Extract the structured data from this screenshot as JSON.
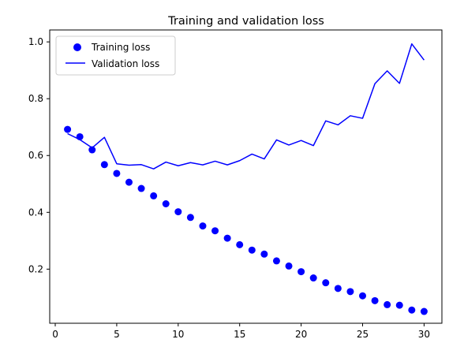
{
  "chart_data": {
    "type": "line",
    "title": "Training and validation loss",
    "xlabel": "",
    "ylabel": "",
    "xlim": [
      -0.45,
      31.45
    ],
    "ylim": [
      0.0095,
      1.042
    ],
    "xticks": [
      0,
      5,
      10,
      15,
      20,
      25,
      30
    ],
    "yticks": [
      0.2,
      0.4,
      0.6,
      0.8,
      1.0
    ],
    "ytick_labels": [
      "0.2",
      "0.4",
      "0.6",
      "0.8",
      "1.0"
    ],
    "grid": false,
    "legend_position": "top-left",
    "series": [
      {
        "name": "Training loss",
        "style": "markers",
        "color": "#0000ff",
        "x": [
          1,
          2,
          3,
          4,
          5,
          6,
          7,
          8,
          9,
          10,
          11,
          12,
          13,
          14,
          15,
          16,
          17,
          18,
          19,
          20,
          21,
          22,
          23,
          24,
          25,
          26,
          27,
          28,
          29,
          30
        ],
        "y": [
          0.692,
          0.666,
          0.62,
          0.568,
          0.537,
          0.506,
          0.484,
          0.458,
          0.43,
          0.402,
          0.382,
          0.352,
          0.335,
          0.309,
          0.286,
          0.267,
          0.253,
          0.229,
          0.211,
          0.191,
          0.169,
          0.152,
          0.132,
          0.121,
          0.106,
          0.089,
          0.075,
          0.073,
          0.056,
          0.051
        ]
      },
      {
        "name": "Validation loss",
        "style": "line",
        "color": "#0000ff",
        "x": [
          1,
          2,
          3,
          4,
          5,
          6,
          7,
          8,
          9,
          10,
          11,
          12,
          13,
          14,
          15,
          16,
          17,
          18,
          19,
          20,
          21,
          22,
          23,
          24,
          25,
          26,
          27,
          28,
          29,
          30
        ],
        "y": [
          0.677,
          0.656,
          0.627,
          0.664,
          0.571,
          0.566,
          0.568,
          0.553,
          0.577,
          0.564,
          0.575,
          0.567,
          0.58,
          0.567,
          0.582,
          0.605,
          0.588,
          0.655,
          0.637,
          0.653,
          0.635,
          0.722,
          0.708,
          0.74,
          0.731,
          0.853,
          0.898,
          0.854,
          0.993,
          0.936
        ]
      }
    ]
  }
}
